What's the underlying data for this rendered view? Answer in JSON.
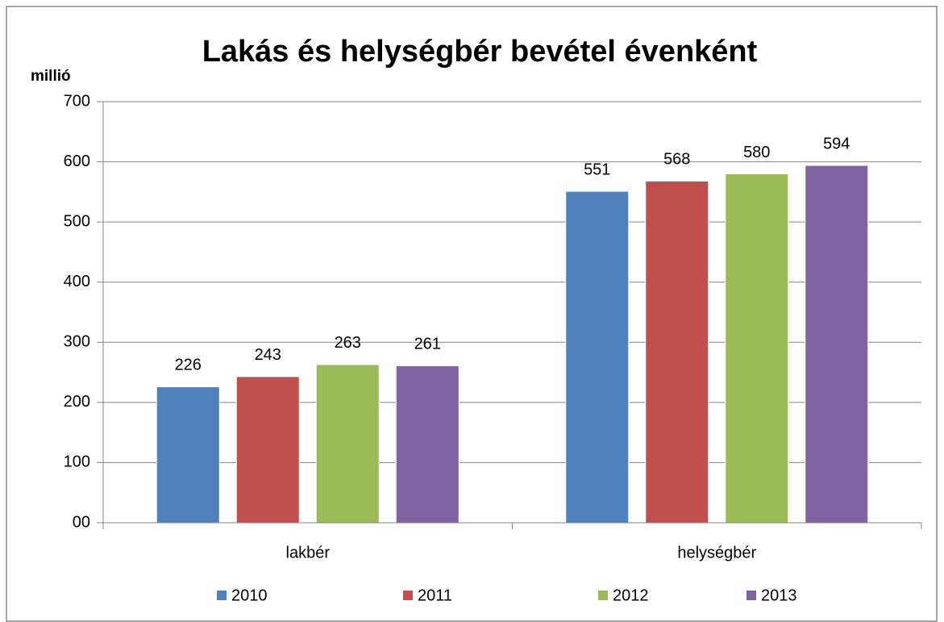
{
  "chart_data": {
    "type": "bar",
    "title": "Lakás és helységbér bevétel évenként",
    "y_label": "millió",
    "categories": [
      "lakbér",
      "helységbér"
    ],
    "series": [
      {
        "name": "2010",
        "color": "#4f81bd",
        "values": [
          226,
          551
        ]
      },
      {
        "name": "2011",
        "color": "#c0504d",
        "values": [
          243,
          568
        ]
      },
      {
        "name": "2012",
        "color": "#9bbb59",
        "values": [
          263,
          580
        ]
      },
      {
        "name": "2013",
        "color": "#8064a2",
        "values": [
          261,
          594
        ]
      }
    ],
    "ylim": [
      0,
      700
    ],
    "yticks": [
      {
        "value": 0,
        "label": "00"
      },
      100,
      200,
      300,
      400,
      500,
      600,
      700
    ],
    "grid": true,
    "legend": "bottom"
  }
}
